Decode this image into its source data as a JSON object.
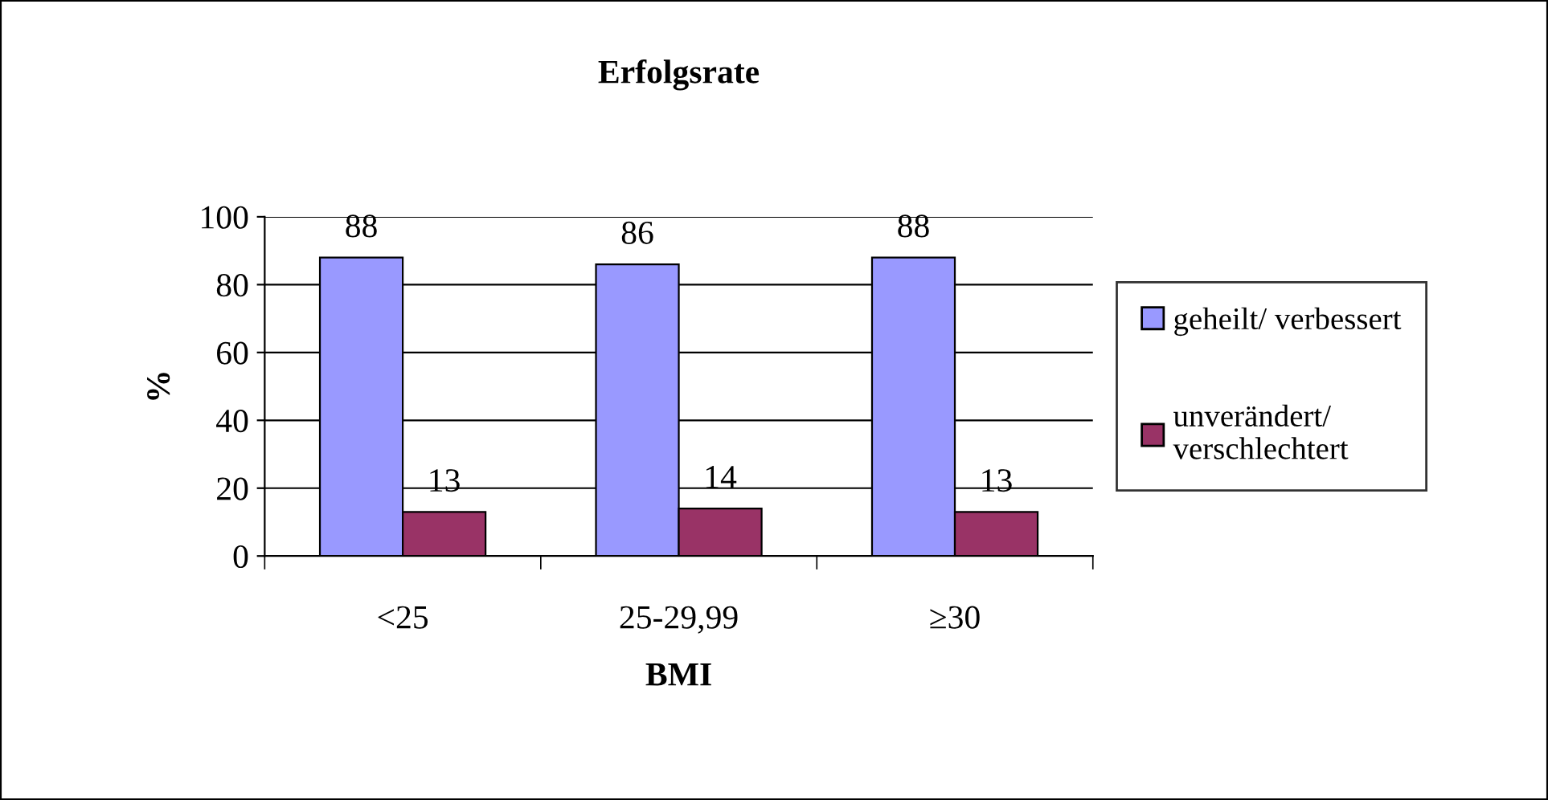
{
  "chart_data": {
    "type": "bar",
    "title": "Erfolgsrate",
    "xlabel": "BMI",
    "ylabel": "%",
    "categories": [
      "<25",
      "25-29,99",
      "≥30"
    ],
    "series": [
      {
        "name": "geheilt/ verbessert",
        "color": "#9999ff",
        "values": [
          88,
          86,
          88
        ]
      },
      {
        "name": "unverändert/\nverschlechtert",
        "color": "#993366",
        "values": [
          13,
          14,
          13
        ]
      }
    ],
    "ylim": [
      0,
      100
    ],
    "yticks": [
      0,
      20,
      40,
      60,
      80,
      100
    ],
    "grid": "y",
    "legend": "right",
    "data_labels": true
  }
}
